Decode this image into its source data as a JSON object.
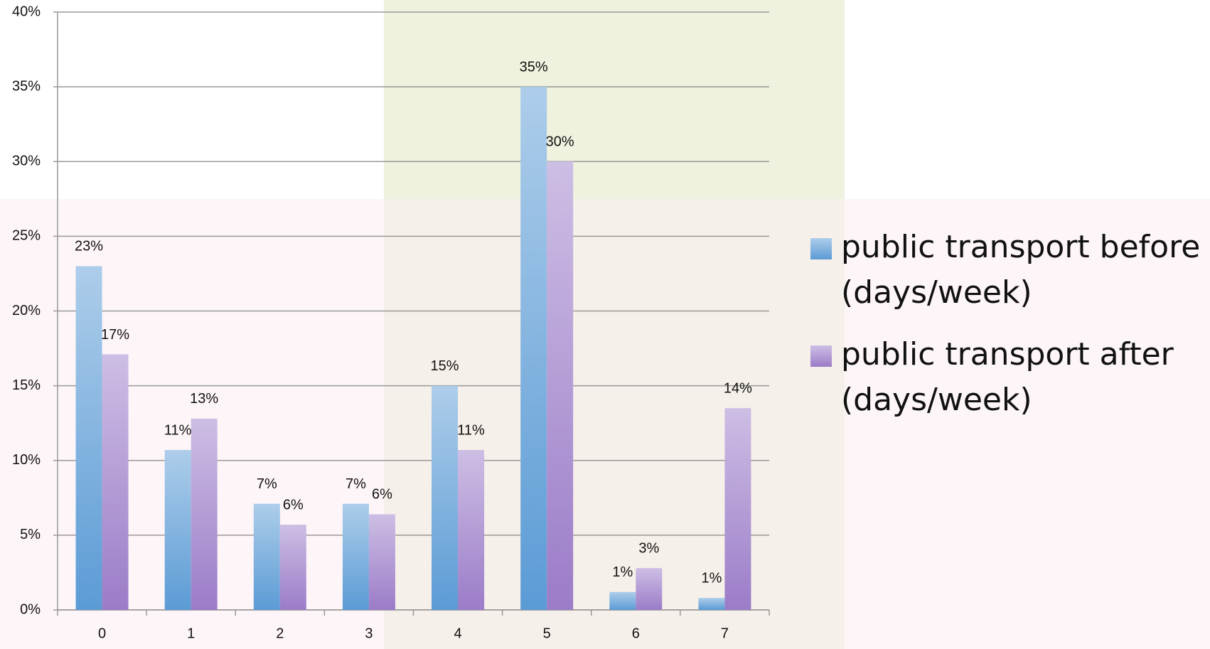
{
  "chart_data": {
    "type": "bar",
    "categories": [
      "0",
      "1",
      "2",
      "3",
      "4",
      "5",
      "6",
      "7"
    ],
    "series": [
      {
        "name": "public transport before (days/week)",
        "color": "#5b9bd5",
        "values": [
          23,
          10.7,
          7.1,
          7.1,
          15,
          35,
          1.2,
          0.8
        ],
        "value_labels": [
          "23%",
          "11%",
          "7%",
          "7%",
          "15%",
          "35%",
          "1%",
          "1%"
        ]
      },
      {
        "name": "public transport after (days/week)",
        "color": "#9b7cc8",
        "values": [
          17.1,
          12.8,
          5.7,
          6.4,
          10.7,
          30,
          2.8,
          13.5
        ],
        "value_labels": [
          "17%",
          "13%",
          "6%",
          "6%",
          "11%",
          "30%",
          "3%",
          "14%"
        ]
      }
    ],
    "ylim": [
      0,
      40
    ],
    "yticks": [
      {
        "value": 0,
        "label": "0%"
      },
      {
        "value": 5,
        "label": "5%"
      },
      {
        "value": 10,
        "label": "10%"
      },
      {
        "value": 15,
        "label": "15%"
      },
      {
        "value": 20,
        "label": "20%"
      },
      {
        "value": 25,
        "label": "25%"
      },
      {
        "value": 30,
        "label": "30%"
      },
      {
        "value": 35,
        "label": "35%"
      },
      {
        "value": 40,
        "label": "40%"
      }
    ],
    "grid": true,
    "legend": "right"
  }
}
